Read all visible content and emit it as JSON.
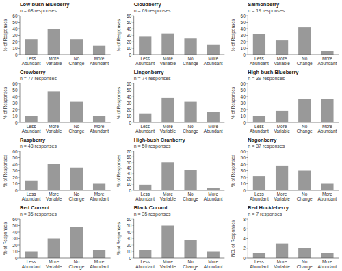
{
  "chart_data": [
    {
      "type": "bar",
      "title": "Low-bush Blueberry",
      "subtitle": "n = 68 responses",
      "categories": [
        "Less\nAbundant",
        "More\nVariable",
        "No\nChange",
        "More\nAbundant"
      ],
      "values": [
        24,
        40,
        24,
        14
      ],
      "color": "#999999",
      "ylim": [
        0,
        60
      ],
      "yticks": [
        0,
        10,
        20,
        30,
        40,
        50,
        60
      ],
      "y_label": "% of Responses",
      "grid": false
    },
    {
      "type": "bar",
      "title": "Cloudberry",
      "subtitle": "n = 69 responses",
      "categories": [
        "Less\nAbundant",
        "More\nVariable",
        "No\nChange",
        "More\nAbundant"
      ],
      "values": [
        28,
        33,
        25,
        15
      ],
      "color": "#999999",
      "ylim": [
        0,
        60
      ],
      "yticks": [
        0,
        10,
        20,
        30,
        40,
        50,
        60
      ],
      "y_label": "% of Responses",
      "grid": false
    },
    {
      "type": "bar",
      "title": "Salmonberry",
      "subtitle": "n = 19 responses",
      "categories": [
        "Less\nAbundant",
        "More\nVariable",
        "No\nChange",
        "More\nAbundant"
      ],
      "values": [
        32,
        22,
        42,
        6
      ],
      "color": "#999999",
      "ylim": [
        0,
        60
      ],
      "yticks": [
        0,
        10,
        20,
        30,
        40,
        50,
        60
      ],
      "y_label": "% of Responses",
      "grid": false
    },
    {
      "type": "bar",
      "title": "Crowberry",
      "subtitle": "n = 77 responses",
      "categories": [
        "Less\nAbundant",
        "More\nVariable",
        "No\nChange",
        "More\nAbundant"
      ],
      "values": [
        10,
        48,
        32,
        10
      ],
      "color": "#999999",
      "ylim": [
        0,
        60
      ],
      "yticks": [
        0,
        10,
        20,
        30,
        40,
        50,
        60
      ],
      "y_label": "% of Responses",
      "grid": false
    },
    {
      "type": "bar",
      "title": "Lingonberry",
      "subtitle": "n = 74 responses",
      "categories": [
        "Less\nAbundant",
        "More\nVariable",
        "No\nChange",
        "More\nAbundant"
      ],
      "values": [
        14,
        38,
        32,
        16
      ],
      "color": "#999999",
      "ylim": [
        0,
        60
      ],
      "yticks": [
        0,
        10,
        20,
        30,
        40,
        50,
        60
      ],
      "y_label": "% of Responses",
      "grid": false
    },
    {
      "type": "bar",
      "title": "High-bush Blueberry",
      "subtitle": "n = 39 responses",
      "categories": [
        "Less\nAbundant",
        "More\nVariable",
        "No\nChange",
        "More\nAbundant"
      ],
      "values": [
        10,
        18,
        36,
        36
      ],
      "color": "#999999",
      "ylim": [
        0,
        60
      ],
      "yticks": [
        0,
        10,
        20,
        30,
        40,
        50,
        60
      ],
      "y_label": "% of Responses",
      "grid": false
    },
    {
      "type": "bar",
      "title": "Raspberry",
      "subtitle": "n = 48 responses",
      "categories": [
        "Less\nAbundant",
        "More\nVariable",
        "No\nChange",
        "More\nAbundant"
      ],
      "values": [
        15,
        40,
        35,
        10
      ],
      "color": "#999999",
      "ylim": [
        0,
        60
      ],
      "yticks": [
        0,
        10,
        20,
        30,
        40,
        50,
        60
      ],
      "y_label": "% of Responses",
      "grid": false
    },
    {
      "type": "bar",
      "title": "High-bush Cranberry",
      "subtitle": "n = 50 responses",
      "categories": [
        "Less\nAbundant",
        "More\nVariable",
        "No\nChange",
        "More\nAbundant"
      ],
      "values": [
        10,
        50,
        36,
        4
      ],
      "color": "#999999",
      "ylim": [
        0,
        70
      ],
      "yticks": [
        0,
        10,
        20,
        30,
        40,
        50,
        60,
        70
      ],
      "y_label": "% of Responses",
      "grid": false
    },
    {
      "type": "bar",
      "title": "Nagonberry",
      "subtitle": "n = 37 responses",
      "categories": [
        "Less\nAbundant",
        "More\nVariable",
        "No\nChange",
        "More\nAbundant"
      ],
      "values": [
        22,
        38,
        30,
        10
      ],
      "color": "#999999",
      "ylim": [
        0,
        60
      ],
      "yticks": [
        0,
        10,
        20,
        30,
        40,
        50,
        60
      ],
      "y_label": "% of Responses",
      "grid": false
    },
    {
      "type": "bar",
      "title": "Red Currant",
      "subtitle": "n = 35 responses",
      "categories": [
        "Less\nAbundant",
        "More\nVariable",
        "No\nChange",
        "More\nAbundant"
      ],
      "values": [
        10,
        30,
        48,
        12
      ],
      "color": "#999999",
      "ylim": [
        0,
        60
      ],
      "yticks": [
        0,
        10,
        20,
        30,
        40,
        50,
        60
      ],
      "y_label": "% of Responses",
      "grid": false
    },
    {
      "type": "bar",
      "title": "Black Currant",
      "subtitle": "n = 35 responses",
      "categories": [
        "Less\nAbundant",
        "More\nVariable",
        "No\nChange",
        "More\nAbundant"
      ],
      "values": [
        12,
        50,
        28,
        10
      ],
      "color": "#999999",
      "ylim": [
        0,
        60
      ],
      "yticks": [
        0,
        10,
        20,
        30,
        40,
        50,
        60
      ],
      "y_label": "% of Responses",
      "grid": false
    },
    {
      "type": "bar",
      "title": "Red Huckleberry",
      "subtitle": "n = 7 responses",
      "categories": [
        "Less\nAbundant",
        "More\nVariable",
        "No\nChange",
        "More\nAbundant"
      ],
      "values": [
        1,
        3,
        2,
        1
      ],
      "color": "#999999",
      "ylim": [
        0,
        8
      ],
      "yticks": [
        0,
        2,
        4,
        6,
        8
      ],
      "y_label": "NO. of Responses",
      "grid": false
    }
  ]
}
